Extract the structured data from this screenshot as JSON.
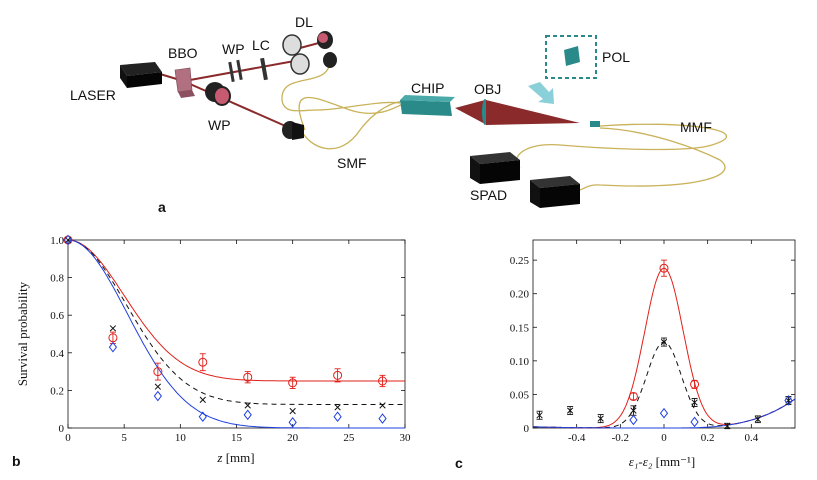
{
  "diagram": {
    "labels": {
      "laser": "LASER",
      "bbo": "BBO",
      "wp_top": "WP",
      "lc": "LC",
      "dl": "DL",
      "wp_bottom": "WP",
      "smf": "SMF",
      "chip": "CHIP",
      "obj": "OBJ",
      "pol": "POL",
      "mmf": "MMF",
      "spad": "SPAD"
    },
    "panel_label": "a"
  },
  "colors": {
    "beam": "#8a2a2a",
    "fiber": "#c9b25a",
    "chip": "#2a8a8a",
    "red": "#e0201a",
    "blue": "#2040e0",
    "black": "#111111"
  },
  "chart_data": [
    {
      "type": "scatter",
      "panel_label": "b",
      "xlabel_italic": "z",
      "xlabel_unit": " [mm]",
      "ylabel": "Survival probability",
      "xlim": [
        0,
        30
      ],
      "ylim": [
        0,
        1
      ],
      "xticks": [
        "0",
        "5",
        "10",
        "15",
        "20",
        "25",
        "30"
      ],
      "xtick_values": [
        0,
        5,
        10,
        15,
        20,
        25,
        30
      ],
      "yticks": [
        "0",
        "0.2",
        "0.4",
        "0.6",
        "0.8",
        "1.0"
      ],
      "ytick_values": [
        0,
        0.2,
        0.4,
        0.6,
        0.8,
        1.0
      ],
      "series": [
        {
          "name": "red circles",
          "marker": "circle",
          "color": "red",
          "x": [
            0,
            4,
            8,
            12,
            16,
            20,
            24,
            28
          ],
          "y": [
            1.0,
            0.48,
            0.3,
            0.35,
            0.27,
            0.24,
            0.28,
            0.25
          ],
          "err": [
            0,
            0.03,
            0.045,
            0.045,
            0.03,
            0.03,
            0.035,
            0.03
          ]
        },
        {
          "name": "black crosses",
          "marker": "cross",
          "color": "black",
          "x": [
            0,
            4,
            8,
            12,
            16,
            20,
            24,
            28
          ],
          "y": [
            1.0,
            0.53,
            0.22,
            0.15,
            0.12,
            0.09,
            0.11,
            0.12
          ],
          "err": [
            0,
            0,
            0,
            0,
            0,
            0,
            0,
            0
          ]
        },
        {
          "name": "blue diamonds",
          "marker": "diamond",
          "color": "blue",
          "x": [
            0,
            4,
            8,
            12,
            16,
            20,
            24,
            28
          ],
          "y": [
            1.0,
            0.43,
            0.17,
            0.06,
            0.07,
            0.03,
            0.06,
            0.05
          ],
          "err": [
            0,
            0,
            0,
            0,
            0,
            0,
            0,
            0
          ]
        }
      ],
      "curves": [
        {
          "name": "red fit",
          "color": "red",
          "style": "solid",
          "asymptote": 0.25,
          "scale": 5.0
        },
        {
          "name": "black fit",
          "color": "black",
          "style": "dashed",
          "asymptote": 0.125,
          "scale": 5.2
        },
        {
          "name": "blue fit",
          "color": "blue",
          "style": "solid",
          "asymptote": 0.0,
          "scale": 5.3
        }
      ]
    },
    {
      "type": "scatter",
      "panel_label": "c",
      "xlabel_math": "ε₁-ε₂",
      "xlabel_unit": " [mm⁻¹]",
      "xlim": [
        -0.6,
        0.6
      ],
      "ylim": [
        0,
        0.28
      ],
      "xticks": [
        "-0.4",
        "-0.2",
        "0",
        "0.2",
        "0.4"
      ],
      "xtick_values": [
        -0.4,
        -0.2,
        0,
        0.2,
        0.4
      ],
      "yticks": [
        "0",
        "0.05",
        "0.10",
        "0.15",
        "0.20",
        "0.25"
      ],
      "ytick_values": [
        0,
        0.05,
        0.1,
        0.15,
        0.2,
        0.25
      ],
      "series": [
        {
          "name": "red circles",
          "marker": "circle",
          "color": "red",
          "x": [
            -0.14,
            0,
            0.14
          ],
          "y": [
            0.047,
            0.238,
            0.065
          ],
          "err": [
            0.005,
            0.012,
            0.006
          ]
        },
        {
          "name": "black crosses",
          "marker": "cross",
          "color": "black",
          "x": [
            -0.57,
            -0.43,
            -0.29,
            -0.14,
            0,
            0.14,
            0.29,
            0.43,
            0.57
          ],
          "y": [
            0.019,
            0.026,
            0.014,
            0.026,
            0.128,
            0.038,
            0.003,
            0.013,
            0.041
          ],
          "err": [
            0.006,
            0.006,
            0.006,
            0.007,
            0.006,
            0.006,
            0.004,
            0.005,
            0.006
          ]
        },
        {
          "name": "blue diamonds",
          "marker": "diamond",
          "color": "blue",
          "x": [
            -0.14,
            0,
            0.14,
            0.57
          ],
          "y": [
            0.012,
            0.022,
            0.009,
            0.041
          ],
          "err": [
            0,
            0,
            0,
            0
          ]
        }
      ],
      "curves": [
        {
          "name": "red fit",
          "color": "red",
          "style": "solid",
          "peak": 0.238,
          "sigma": 0.088
        },
        {
          "name": "black fit",
          "color": "black",
          "style": "dashed",
          "peak": 0.128,
          "sigma": 0.08
        },
        {
          "name": "blue fit",
          "color": "blue",
          "style": "solid",
          "peak": 0.0,
          "sigma": 0.08
        }
      ]
    }
  ]
}
